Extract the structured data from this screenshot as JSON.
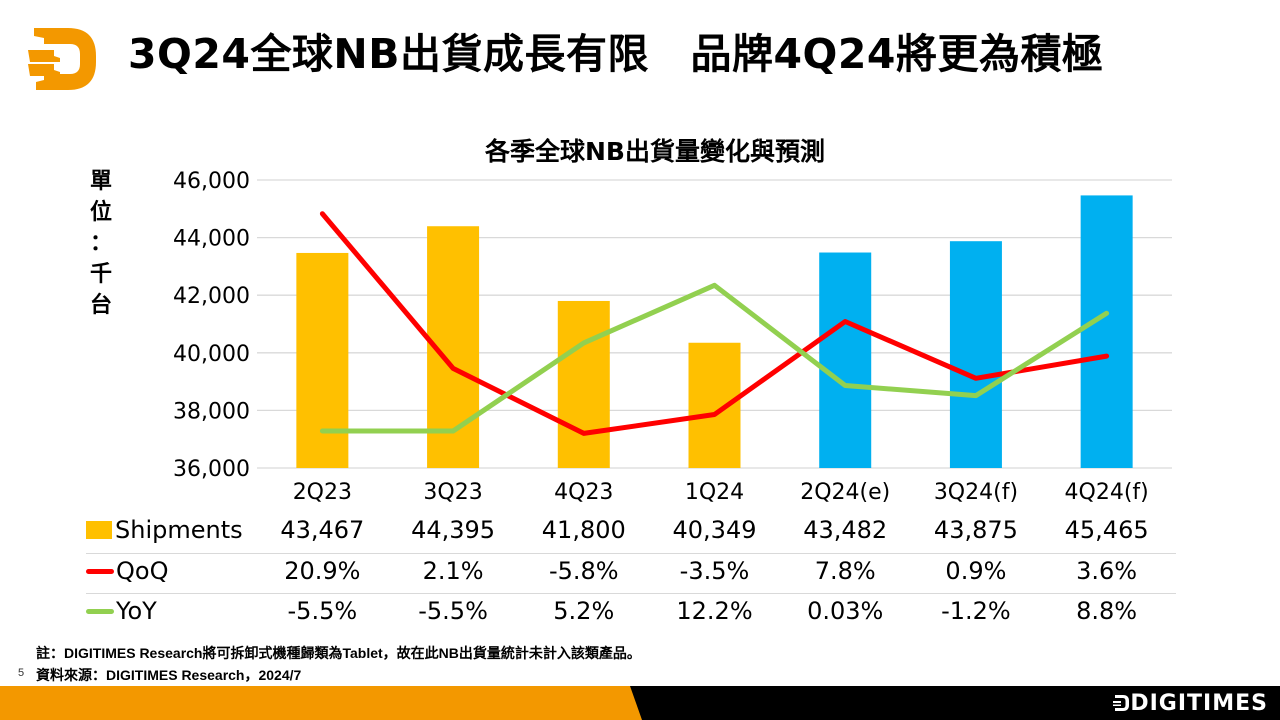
{
  "header": {
    "title": "3Q24全球NB出貨成長有限　品牌4Q24將更為積極",
    "logo_icon": "digitimes-d-logo-icon"
  },
  "colors": {
    "brand_orange": "#f39800",
    "bar_actual": "#ffc000",
    "bar_forecast": "#00b0f0",
    "qoq_line": "#ff0000",
    "yoy_line": "#92d050"
  },
  "chart_data": {
    "type": "bar",
    "title": "各季全球NB出貨量變化與預測",
    "ylabel_chars": [
      "單",
      "位",
      "：",
      "千",
      "台"
    ],
    "ylim": [
      36000,
      46000
    ],
    "yticks": [
      "46,000",
      "44,000",
      "42,000",
      "40,000",
      "38,000",
      "36,000"
    ],
    "ytick_values": [
      46000,
      44000,
      42000,
      40000,
      38000,
      36000
    ],
    "y2lim": [
      -10,
      25
    ],
    "grid": true,
    "categories": [
      "2Q23",
      "3Q23",
      "4Q23",
      "1Q24",
      "2Q24(e)",
      "3Q24(f)",
      "4Q24(f)"
    ],
    "forecast_from_index": 4,
    "series": [
      {
        "name": "Shipments",
        "kind": "bar",
        "values": [
          43467,
          44395,
          41800,
          40349,
          43482,
          43875,
          45465
        ],
        "labels": [
          "43,467",
          "44,395",
          "41,800",
          "40,349",
          "43,482",
          "43,875",
          "45,465"
        ]
      },
      {
        "name": "QoQ",
        "kind": "line",
        "axis": "secondary",
        "values": [
          20.9,
          2.1,
          -5.8,
          -3.5,
          7.8,
          0.9,
          3.6
        ],
        "labels": [
          "20.9%",
          "2.1%",
          "-5.8%",
          "-3.5%",
          "7.8%",
          "0.9%",
          "3.6%"
        ]
      },
      {
        "name": "YoY",
        "kind": "line",
        "axis": "secondary",
        "values": [
          -5.5,
          -5.5,
          5.2,
          12.2,
          0.03,
          -1.2,
          8.8
        ],
        "labels": [
          "-5.5%",
          "-5.5%",
          "5.2%",
          "12.2%",
          "0.03%",
          "-1.2%",
          "8.8%"
        ]
      }
    ]
  },
  "notes": {
    "note": "註：DIGITIMES Research將可拆卸式機種歸類為Tablet，故在此NB出貨量統計未計入該類產品。",
    "source": "資料來源：DIGITIMES Research，2024/7",
    "page_number": "5"
  },
  "footer": {
    "brand": "DIGITIMES"
  }
}
